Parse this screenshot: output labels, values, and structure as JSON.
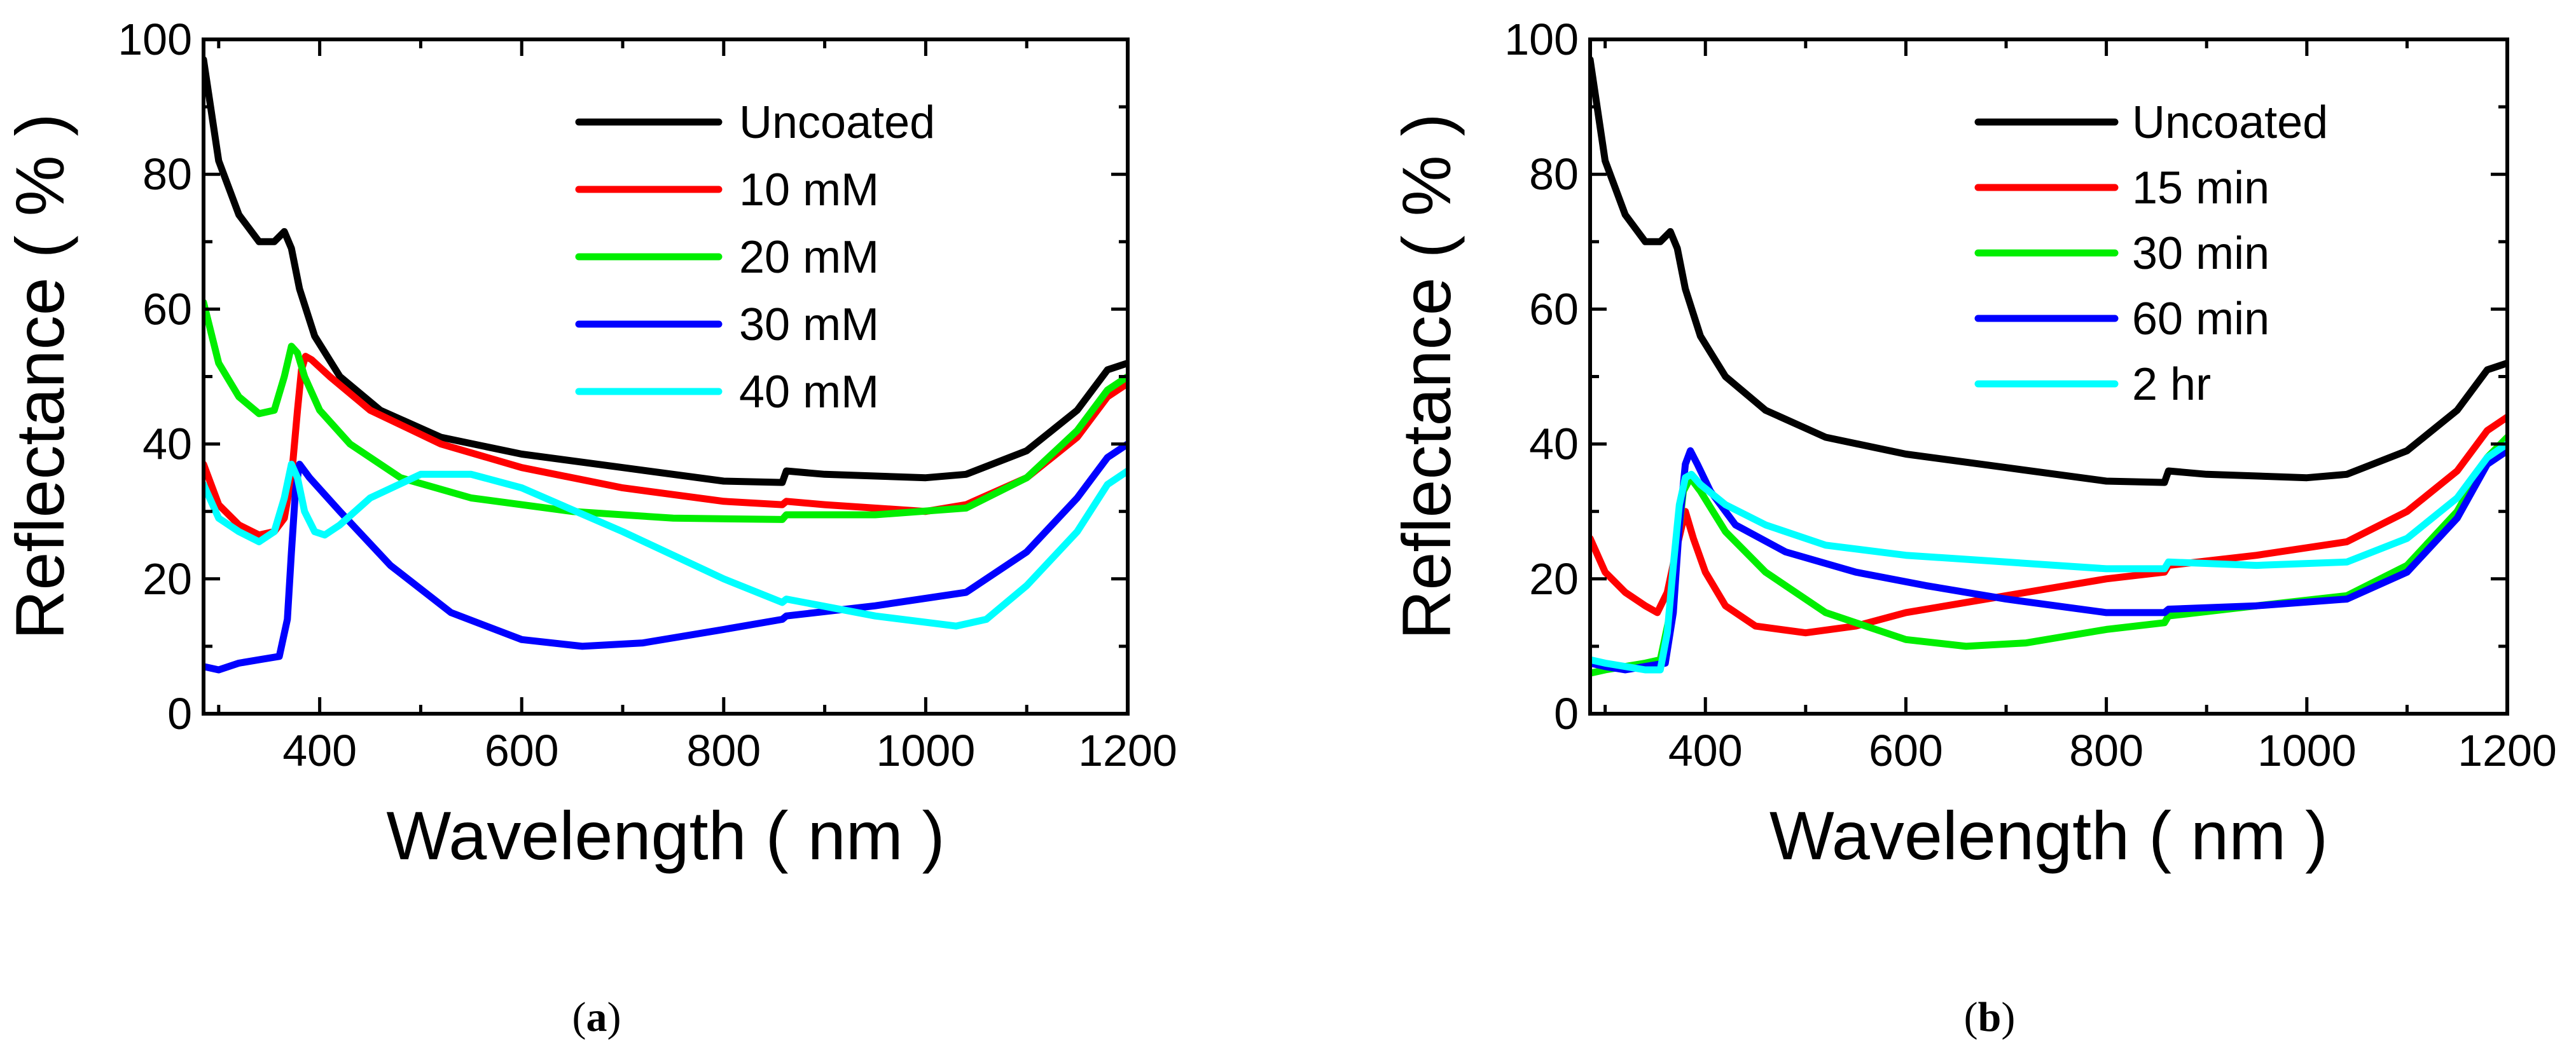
{
  "chart_data": [
    {
      "type": "line",
      "caption": "a",
      "xlabel": "Wavelength ( nm )",
      "ylabel": "Reflectance ( % )",
      "xlim": [
        285,
        1200
      ],
      "ylim": [
        0,
        100
      ],
      "xticks": [
        400,
        600,
        800,
        1000,
        1200
      ],
      "yticks": [
        0,
        20,
        40,
        60,
        80,
        100
      ],
      "legend_position": "top-right",
      "grid": false,
      "series": [
        {
          "name": "Uncoated",
          "color": "#000000",
          "x": [
            285,
            300,
            320,
            340,
            355,
            365,
            372,
            380,
            395,
            420,
            460,
            520,
            600,
            700,
            800,
            858,
            862,
            900,
            1000,
            1040,
            1100,
            1150,
            1180,
            1200
          ],
          "y": [
            97,
            82,
            74,
            70,
            70,
            71.5,
            69,
            63,
            56,
            50,
            45,
            41,
            38.5,
            36.5,
            34.5,
            34.3,
            36,
            35.5,
            35,
            35.5,
            39,
            45,
            51,
            52
          ]
        },
        {
          "name": "10 mM",
          "color": "#ff0000",
          "x": [
            285,
            300,
            320,
            340,
            355,
            365,
            372,
            378,
            382,
            386,
            392,
            410,
            450,
            520,
            600,
            700,
            800,
            858,
            862,
            900,
            1000,
            1040,
            1100,
            1150,
            1180,
            1200
          ],
          "y": [
            37,
            31,
            28,
            26.5,
            27,
            29,
            35,
            45,
            51,
            53,
            52.5,
            50,
            45,
            40,
            36.5,
            33.5,
            31.5,
            31,
            31.5,
            31,
            30,
            31,
            35,
            41,
            47,
            49
          ]
        },
        {
          "name": "20 mM",
          "color": "#00ee00",
          "x": [
            285,
            300,
            320,
            340,
            355,
            365,
            372,
            378,
            385,
            400,
            430,
            480,
            550,
            650,
            750,
            858,
            862,
            950,
            1040,
            1100,
            1150,
            1180,
            1200
          ],
          "y": [
            61,
            52,
            47,
            44.5,
            45,
            50,
            54.5,
            53.5,
            50,
            45,
            40,
            35,
            32,
            30,
            29,
            28.8,
            29.5,
            29.5,
            30.5,
            35,
            42,
            48,
            50
          ]
        },
        {
          "name": "30 mM",
          "color": "#0000ff",
          "x": [
            285,
            300,
            320,
            340,
            360,
            368,
            372,
            376,
            380,
            385,
            390,
            420,
            470,
            530,
            600,
            660,
            720,
            800,
            858,
            862,
            950,
            1040,
            1100,
            1150,
            1180,
            1200
          ],
          "y": [
            7,
            6.5,
            7.5,
            8,
            8.5,
            14,
            24,
            33,
            37,
            36,
            35,
            30,
            22,
            15,
            11,
            10,
            10.5,
            12.5,
            14,
            14.5,
            16,
            18,
            24,
            32,
            38,
            40
          ]
        },
        {
          "name": "40 mM",
          "color": "#00ffff",
          "x": [
            285,
            300,
            320,
            340,
            355,
            365,
            372,
            378,
            385,
            395,
            405,
            420,
            450,
            500,
            550,
            600,
            700,
            800,
            858,
            862,
            950,
            1030,
            1060,
            1100,
            1150,
            1180,
            1200
          ],
          "y": [
            34,
            29,
            27,
            25.5,
            27,
            32,
            37,
            35,
            30,
            27,
            26.5,
            28,
            32,
            35.5,
            35.5,
            33.5,
            27,
            20,
            16.5,
            17,
            14.5,
            13,
            14,
            19,
            27,
            34,
            36
          ]
        }
      ]
    },
    {
      "type": "line",
      "caption": "b",
      "xlabel": "Wavelength ( nm )",
      "ylabel": "Reflectance ( % )",
      "xlim": [
        285,
        1200
      ],
      "ylim": [
        0,
        100
      ],
      "xticks": [
        400,
        600,
        800,
        1000,
        1200
      ],
      "yticks": [
        0,
        20,
        40,
        60,
        80,
        100
      ],
      "legend_position": "top-right",
      "grid": false,
      "series": [
        {
          "name": "Uncoated",
          "color": "#000000",
          "x": [
            285,
            300,
            320,
            340,
            355,
            365,
            372,
            380,
            395,
            420,
            460,
            520,
            600,
            700,
            800,
            858,
            862,
            900,
            1000,
            1040,
            1100,
            1150,
            1180,
            1200
          ],
          "y": [
            97,
            82,
            74,
            70,
            70,
            71.5,
            69,
            63,
            56,
            50,
            45,
            41,
            38.5,
            36.5,
            34.5,
            34.3,
            36,
            35.5,
            35,
            35.5,
            39,
            45,
            51,
            52
          ]
        },
        {
          "name": "15 min",
          "color": "#ff0000",
          "x": [
            285,
            300,
            320,
            340,
            352,
            362,
            372,
            380,
            388,
            400,
            420,
            450,
            500,
            550,
            600,
            700,
            800,
            858,
            862,
            950,
            1040,
            1100,
            1150,
            1180,
            1200
          ],
          "y": [
            26,
            21,
            18,
            16,
            15,
            18,
            25,
            30,
            26,
            21,
            16,
            13,
            12,
            13,
            15,
            17.5,
            20,
            21,
            22,
            23.5,
            25.5,
            30,
            36,
            42,
            44
          ]
        },
        {
          "name": "30 min",
          "color": "#00ee00",
          "x": [
            285,
            300,
            320,
            340,
            355,
            365,
            372,
            378,
            385,
            395,
            420,
            460,
            520,
            600,
            660,
            720,
            800,
            858,
            862,
            950,
            1040,
            1100,
            1150,
            1180,
            1200
          ],
          "y": [
            6,
            6.5,
            7,
            7.5,
            8,
            15,
            25,
            33,
            35,
            33,
            27,
            21,
            15,
            11,
            10,
            10.5,
            12.5,
            13.5,
            14.5,
            16,
            17.5,
            22,
            30,
            38,
            41
          ]
        },
        {
          "name": "60 min",
          "color": "#0000ff",
          "x": [
            285,
            300,
            320,
            340,
            360,
            368,
            374,
            380,
            385,
            392,
            405,
            430,
            480,
            550,
            620,
            700,
            800,
            858,
            862,
            950,
            1040,
            1100,
            1150,
            1180,
            1200
          ],
          "y": [
            7.5,
            7,
            6.5,
            7,
            7.5,
            15,
            28,
            37,
            39,
            37,
            33,
            28,
            24,
            21,
            19,
            17,
            15,
            15,
            15.5,
            16,
            17,
            21,
            29,
            37,
            39
          ]
        },
        {
          "name": " 2 hr",
          "color": "#00ffff",
          "x": [
            285,
            300,
            320,
            340,
            355,
            362,
            368,
            374,
            380,
            386,
            395,
            420,
            460,
            520,
            600,
            700,
            800,
            858,
            862,
            950,
            1040,
            1100,
            1150,
            1180,
            1200
          ],
          "y": [
            8,
            7.5,
            7,
            6.5,
            6.5,
            12,
            22,
            31,
            35,
            35.5,
            34,
            31,
            28,
            25,
            23.5,
            22.5,
            21.5,
            21.5,
            22.5,
            22,
            22.5,
            26,
            32,
            38,
            40
          ]
        }
      ]
    }
  ]
}
